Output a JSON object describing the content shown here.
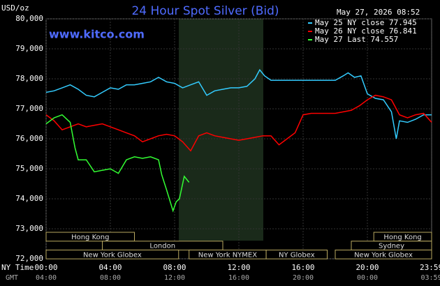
{
  "chart_data": {
    "type": "line",
    "title": "24 Hour Spot Silver (Bid)",
    "timestamp": "May 27, 2026 08:52",
    "y_label": "USD/oz",
    "source": "www.kitco.com",
    "x_label": "NY Time",
    "x2_label": "GMT",
    "xlim": [
      0,
      24
    ],
    "ylim": [
      72,
      80
    ],
    "grid": true,
    "xticks": [
      {
        "value": 0,
        "label": "00:00"
      },
      {
        "value": 4,
        "label": "04:00"
      },
      {
        "value": 8,
        "label": "08:00"
      },
      {
        "value": 12,
        "label": "12:00"
      },
      {
        "value": 16,
        "label": "16:00"
      },
      {
        "value": 20,
        "label": "20:00"
      },
      {
        "value": 23.98,
        "label": "23:59"
      }
    ],
    "x2ticks": [
      {
        "value": 0,
        "label": "04:00"
      },
      {
        "value": 4,
        "label": "08:00"
      },
      {
        "value": 8,
        "label": "12:00"
      },
      {
        "value": 12,
        "label": "16:00"
      },
      {
        "value": 16,
        "label": "20:00"
      },
      {
        "value": 20,
        "label": "00:00"
      },
      {
        "value": 23.98,
        "label": "03:59"
      }
    ],
    "yticks": [
      {
        "value": 72,
        "label": "72,000"
      },
      {
        "value": 73,
        "label": "73,000"
      },
      {
        "value": 74,
        "label": "74,000"
      },
      {
        "value": 75,
        "label": "75,000"
      },
      {
        "value": 76,
        "label": "76,000"
      },
      {
        "value": 77,
        "label": "77,000"
      },
      {
        "value": 78,
        "label": "78,000"
      },
      {
        "value": 79,
        "label": "79,000"
      },
      {
        "value": 80,
        "label": "80,000"
      }
    ],
    "series": [
      {
        "name": "May 25 NY close 77.945",
        "color": "#33ccff",
        "x": [
          0,
          0.5,
          1,
          1.5,
          2,
          2.5,
          3,
          3.5,
          4,
          4.5,
          5,
          5.5,
          6,
          6.5,
          7,
          7.5,
          8,
          8.5,
          9,
          9.5,
          10,
          10.5,
          11,
          11.5,
          12,
          12.5,
          13,
          13.3,
          13.6,
          14,
          15,
          16,
          17,
          18,
          18.5,
          18.8,
          19.2,
          19.6,
          20,
          20.5,
          21,
          21.5,
          21.8,
          22,
          22.5,
          23,
          23.5,
          24
        ],
        "values": [
          77.55,
          77.6,
          77.7,
          77.8,
          77.65,
          77.45,
          77.4,
          77.55,
          77.7,
          77.65,
          77.8,
          77.8,
          77.85,
          77.9,
          78.05,
          77.9,
          77.85,
          77.7,
          77.8,
          77.9,
          77.45,
          77.6,
          77.65,
          77.7,
          77.7,
          77.75,
          78.0,
          78.3,
          78.1,
          77.95,
          77.95,
          77.95,
          77.95,
          77.95,
          78.1,
          78.2,
          78.05,
          78.1,
          77.5,
          77.35,
          77.3,
          76.9,
          76.0,
          76.6,
          76.55,
          76.65,
          76.8,
          76.8
        ]
      },
      {
        "name": "May 26 NY close 76.841",
        "color": "#ff0000",
        "x": [
          0,
          0.5,
          1,
          1.5,
          2,
          2.5,
          3,
          3.5,
          4,
          4.5,
          5,
          5.5,
          6,
          6.5,
          7,
          7.5,
          8,
          8.5,
          9,
          9.5,
          10,
          10.5,
          11,
          11.5,
          12,
          12.5,
          13,
          13.5,
          14,
          14.5,
          15,
          15.5,
          16,
          16.5,
          17,
          18,
          19,
          19.5,
          20,
          20.5,
          21,
          21.5,
          22,
          22.5,
          23,
          23.5,
          24
        ],
        "values": [
          76.8,
          76.6,
          76.3,
          76.4,
          76.5,
          76.4,
          76.45,
          76.5,
          76.4,
          76.3,
          76.2,
          76.1,
          75.9,
          76.0,
          76.1,
          76.15,
          76.1,
          75.9,
          75.6,
          76.1,
          76.2,
          76.1,
          76.05,
          76.0,
          75.95,
          76.0,
          76.05,
          76.1,
          76.1,
          75.8,
          76.0,
          76.2,
          76.8,
          76.85,
          76.85,
          76.85,
          76.95,
          77.1,
          77.3,
          77.45,
          77.4,
          77.3,
          76.8,
          76.7,
          76.8,
          76.85,
          76.55
        ]
      },
      {
        "name": "May 27 Last 74.557",
        "color": "#33ff33",
        "x": [
          0,
          0.5,
          1,
          1.5,
          1.8,
          2,
          2.5,
          3,
          3.5,
          4,
          4.5,
          5,
          5.5,
          6,
          6.5,
          7,
          7.2,
          7.5,
          7.9,
          8.1,
          8.3,
          8.6,
          8.9
        ],
        "values": [
          76.5,
          76.7,
          76.8,
          76.55,
          75.7,
          75.3,
          75.3,
          74.9,
          74.95,
          75.0,
          74.85,
          75.3,
          75.4,
          75.35,
          75.4,
          75.3,
          74.8,
          74.3,
          73.6,
          73.9,
          74.0,
          74.75,
          74.55
        ]
      }
    ],
    "sessions": [
      {
        "name": "Hong Kong",
        "row": 1,
        "start": 0,
        "end": 5.5
      },
      {
        "name": "Hong Kong",
        "row": 1,
        "start": 20.4,
        "end": 24
      },
      {
        "name": "London",
        "row": 2,
        "start": 3.5,
        "end": 11
      },
      {
        "name": "Sydney",
        "row": 2,
        "start": 19,
        "end": 24
      },
      {
        "name": "New York Globex",
        "row": 3,
        "start": 0,
        "end": 8.25
      },
      {
        "name": "New York NYMEX",
        "row": 3,
        "start": 8.9,
        "end": 13.7
      },
      {
        "name": "NY Globex",
        "row": 3,
        "start": 13.7,
        "end": 17.5
      },
      {
        "name": "New York Globex",
        "row": 3,
        "start": 18,
        "end": 24
      }
    ]
  }
}
